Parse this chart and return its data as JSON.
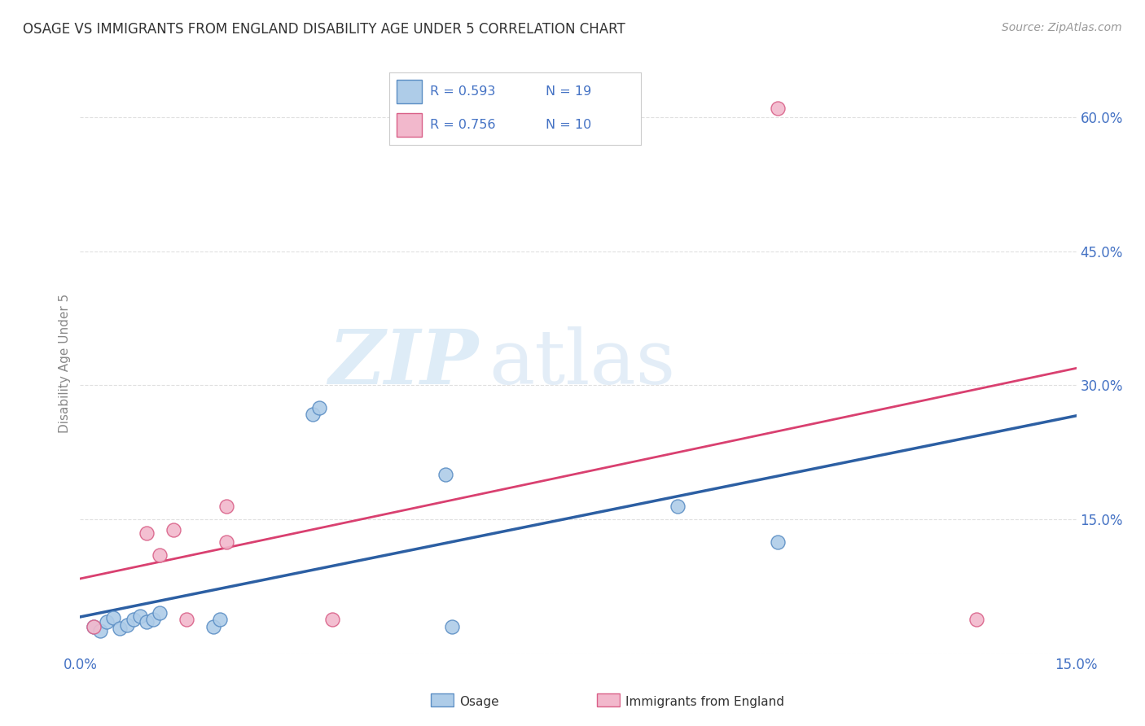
{
  "title": "OSAGE VS IMMIGRANTS FROM ENGLAND DISABILITY AGE UNDER 5 CORRELATION CHART",
  "source": "Source: ZipAtlas.com",
  "ylabel": "Disability Age Under 5",
  "xlim": [
    0.0,
    0.15
  ],
  "ylim": [
    0.0,
    0.65
  ],
  "xticks": [
    0.0,
    0.05,
    0.1,
    0.15
  ],
  "yticks": [
    0.0,
    0.15,
    0.3,
    0.45,
    0.6
  ],
  "xtick_labels_show": [
    "0.0%",
    "",
    "",
    "15.0%"
  ],
  "ytick_labels_show": [
    "",
    "15.0%",
    "30.0%",
    "45.0%",
    "60.0%"
  ],
  "legend_labels_bottom": [
    "Osage",
    "Immigrants from England"
  ],
  "osage_color": "#aecce8",
  "osage_edge_color": "#5b8ec4",
  "osage_line_color": "#2c5fa3",
  "england_color": "#f2b8cc",
  "england_edge_color": "#d96088",
  "england_line_color": "#d94070",
  "R_osage": 0.593,
  "N_osage": 19,
  "R_england": 0.756,
  "N_england": 10,
  "osage_x": [
    0.002,
    0.003,
    0.004,
    0.005,
    0.006,
    0.007,
    0.008,
    0.009,
    0.01,
    0.011,
    0.012,
    0.02,
    0.021,
    0.035,
    0.036,
    0.055,
    0.056,
    0.09,
    0.105
  ],
  "osage_y": [
    0.03,
    0.025,
    0.035,
    0.04,
    0.028,
    0.032,
    0.038,
    0.042,
    0.035,
    0.038,
    0.045,
    0.03,
    0.038,
    0.268,
    0.275,
    0.2,
    0.03,
    0.165,
    0.125
  ],
  "england_x": [
    0.002,
    0.01,
    0.012,
    0.014,
    0.016,
    0.022,
    0.022,
    0.038,
    0.105,
    0.135
  ],
  "england_y": [
    0.03,
    0.135,
    0.11,
    0.138,
    0.038,
    0.165,
    0.125,
    0.038,
    0.61,
    0.038
  ],
  "watermark_ZIP": "ZIP",
  "watermark_atlas": "atlas",
  "background_color": "#ffffff",
  "grid_color": "#e0e0e0",
  "tick_color": "#4472c4",
  "ylabel_color": "#888888",
  "title_color": "#333333"
}
